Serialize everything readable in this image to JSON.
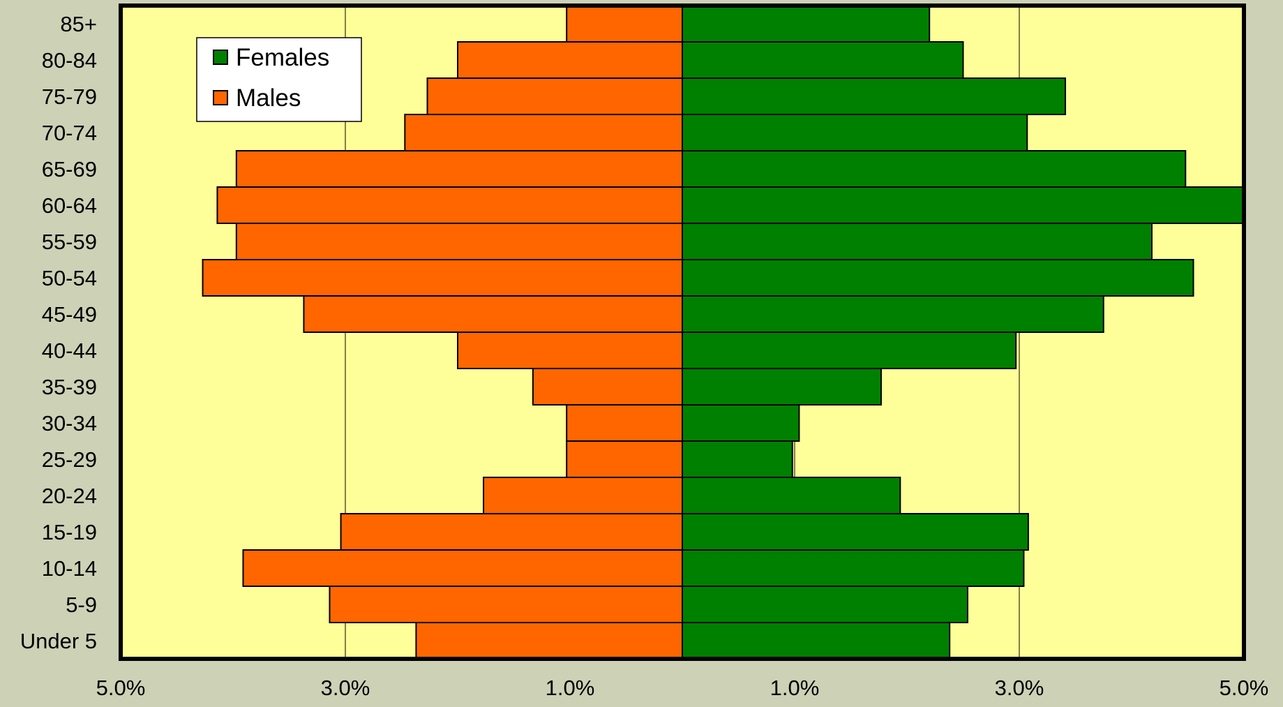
{
  "chart_data": {
    "type": "bar",
    "orientation": "horizontal",
    "layout": "population-pyramid",
    "categories": [
      "85+",
      "80-84",
      "75-79",
      "70-74",
      "65-69",
      "60-64",
      "55-59",
      "50-54",
      "45-49",
      "40-44",
      "35-39",
      "30-34",
      "25-29",
      "20-24",
      "15-19",
      "10-14",
      "5-9",
      "Under 5"
    ],
    "series": [
      {
        "name": "Males",
        "side": "left",
        "color": "#ff6600",
        "values": [
          1.03,
          2.0,
          2.27,
          2.47,
          3.97,
          4.14,
          3.97,
          4.27,
          3.37,
          2.0,
          1.33,
          1.03,
          1.03,
          1.77,
          3.04,
          3.91,
          3.14,
          2.37
        ]
      },
      {
        "name": "Females",
        "side": "right",
        "color": "#008000",
        "values": [
          2.2,
          2.5,
          3.41,
          3.07,
          4.48,
          5.01,
          4.18,
          4.55,
          3.75,
          2.97,
          1.77,
          1.04,
          0.98,
          1.94,
          3.08,
          3.04,
          2.54,
          2.38
        ]
      }
    ],
    "x_ticks": [
      "5.0%",
      "3.0%",
      "1.0%",
      "1.0%",
      "3.0%",
      "5.0%"
    ],
    "xlim": [
      -5,
      5
    ],
    "grid": "vertical-at-major-ticks",
    "legend": {
      "position": "top-left",
      "entries": [
        "Females",
        "Males"
      ]
    },
    "colors": {
      "plot_background": "#ffff99",
      "page_background": "#cdd1b6",
      "gridline": "#000000"
    },
    "title": "",
    "xlabel": "",
    "ylabel": ""
  }
}
